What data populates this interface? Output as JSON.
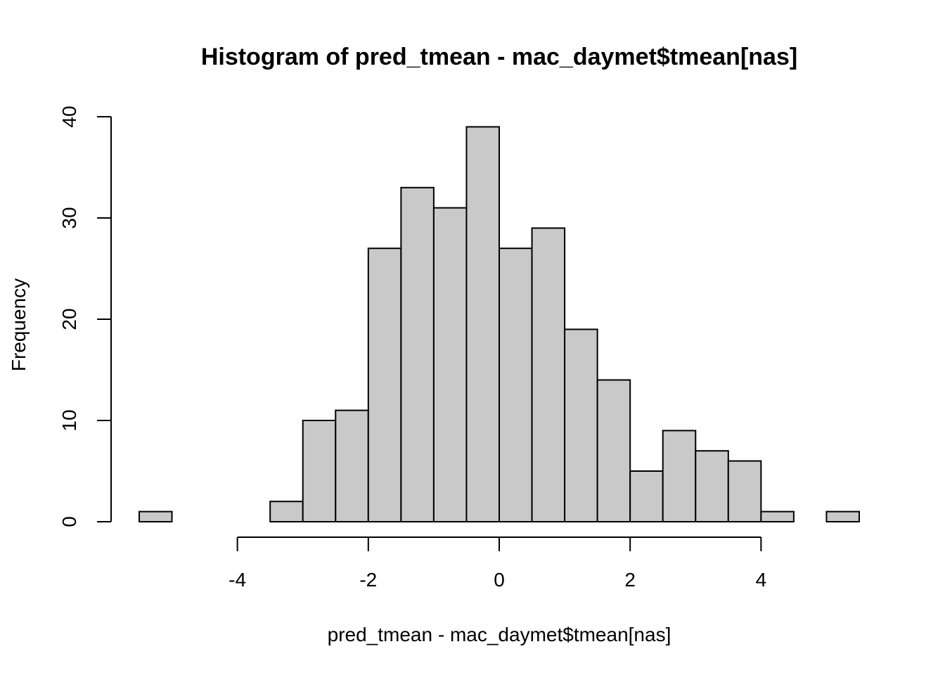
{
  "chart_data": {
    "type": "bar",
    "title": "Histogram of pred_tmean - mac_daymet$tmean[nas]",
    "xlabel": "pred_tmean - mac_daymet$tmean[nas]",
    "ylabel": "Frequency",
    "bin_edges": [
      -5.5,
      -5.0,
      -4.5,
      -4.0,
      -3.5,
      -3.0,
      -2.5,
      -2.0,
      -1.5,
      -1.0,
      -0.5,
      0.0,
      0.5,
      1.0,
      1.5,
      2.0,
      2.5,
      3.0,
      3.5,
      4.0,
      4.5,
      5.0,
      5.5
    ],
    "values": [
      1,
      0,
      0,
      0,
      2,
      10,
      11,
      27,
      33,
      31,
      39,
      27,
      29,
      19,
      14,
      5,
      9,
      7,
      6,
      1,
      0,
      1
    ],
    "xticks": [
      -4,
      -2,
      0,
      2,
      4
    ],
    "xtick_labels": [
      "-4",
      "-2",
      "0",
      "2",
      "4"
    ],
    "yticks": [
      0,
      10,
      20,
      30,
      40
    ],
    "ytick_labels": [
      "0",
      "10",
      "20",
      "30",
      "40"
    ],
    "xlim": [
      -5.5,
      5.5
    ],
    "ylim": [
      0,
      40
    ],
    "grid": false,
    "colors": {
      "bar_fill": "#c9c9c9",
      "bar_stroke": "#000000"
    }
  }
}
